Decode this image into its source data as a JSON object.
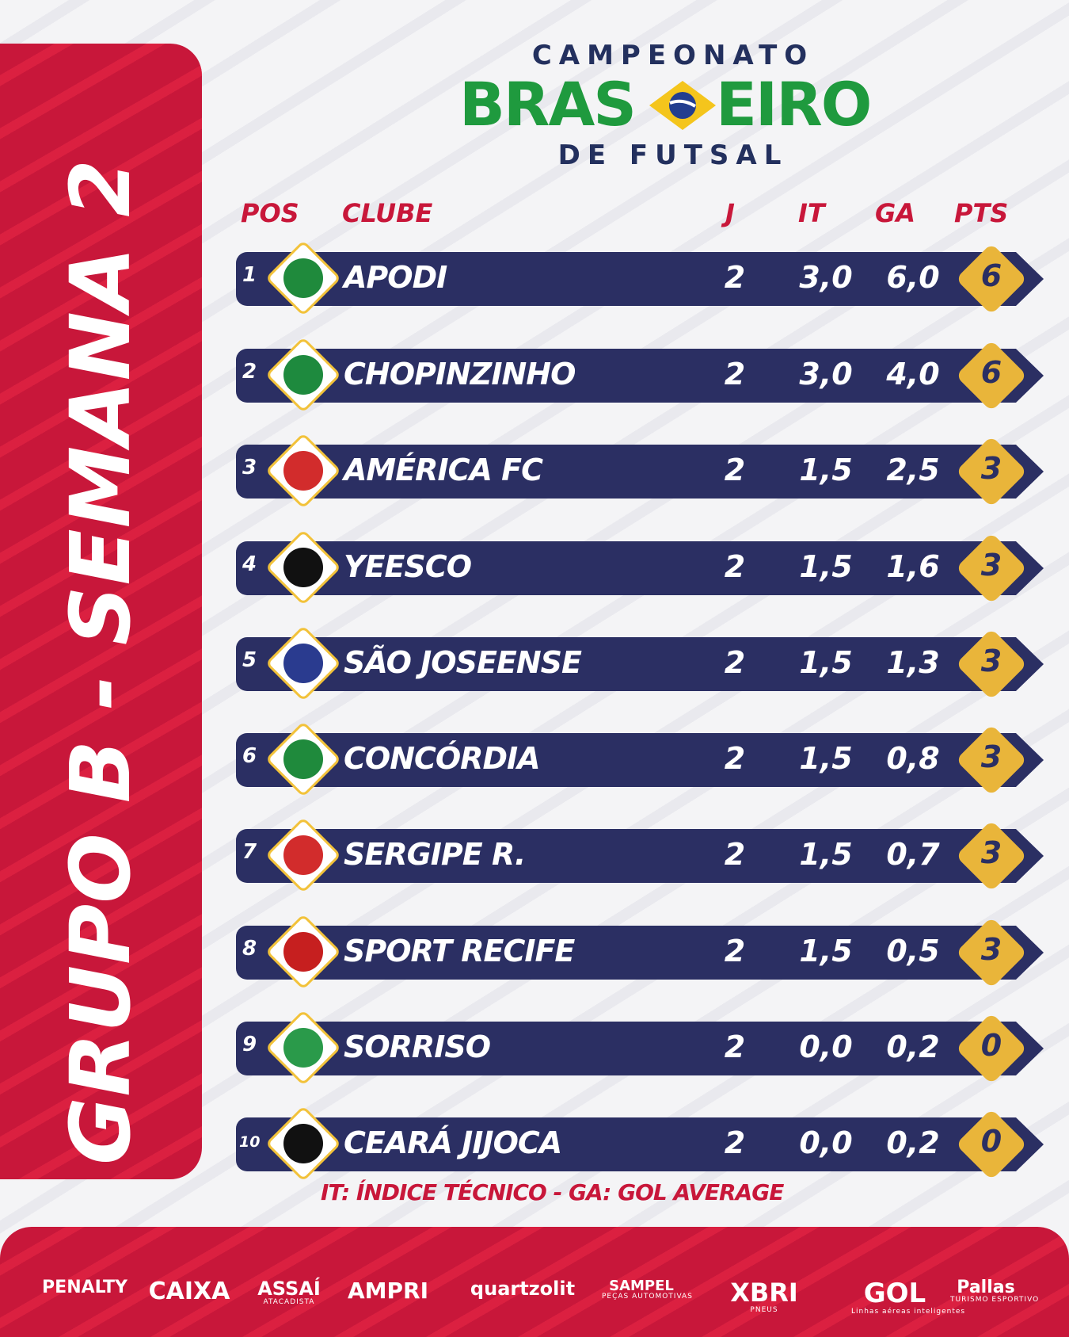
{
  "side_title": "GRUPO B - SEMANA 2",
  "logo": {
    "top": "CAMPEONATO",
    "middle_left": "BRAS",
    "middle_right": "EIRO",
    "bottom": "DE FUTSAL"
  },
  "headers": {
    "pos": "POS",
    "club": "CLUBE",
    "j": "J",
    "it": "IT",
    "ga": "GA",
    "pts": "PTS"
  },
  "rows": [
    {
      "pos": "1",
      "club": "APODI",
      "j": "2",
      "it": "3,0",
      "ga": "6,0",
      "pts": "6",
      "crest_color": "#1f8a3c"
    },
    {
      "pos": "2",
      "club": "CHOPINZINHO",
      "j": "2",
      "it": "3,0",
      "ga": "4,0",
      "pts": "6",
      "crest_color": "#1e8a3e"
    },
    {
      "pos": "3",
      "club": "AMÉRICA FC",
      "j": "2",
      "it": "1,5",
      "ga": "2,5",
      "pts": "3",
      "crest_color": "#d22c2c"
    },
    {
      "pos": "4",
      "club": "YEESCO",
      "j": "2",
      "it": "1,5",
      "ga": "1,6",
      "pts": "3",
      "crest_color": "#111111"
    },
    {
      "pos": "5",
      "club": "SÃO JOSEENSE",
      "j": "2",
      "it": "1,5",
      "ga": "1,3",
      "pts": "3",
      "crest_color": "#2a3b8f"
    },
    {
      "pos": "6",
      "club": "CONCÓRDIA",
      "j": "2",
      "it": "1,5",
      "ga": "0,8",
      "pts": "3",
      "crest_color": "#1f8a3c"
    },
    {
      "pos": "7",
      "club": "SERGIPE R.",
      "j": "2",
      "it": "1,5",
      "ga": "0,7",
      "pts": "3",
      "crest_color": "#d22c2c"
    },
    {
      "pos": "8",
      "club": "SPORT RECIFE",
      "j": "2",
      "it": "1,5",
      "ga": "0,5",
      "pts": "3",
      "crest_color": "#c61f1f"
    },
    {
      "pos": "9",
      "club": "SORRISO",
      "j": "2",
      "it": "0,0",
      "ga": "0,2",
      "pts": "0",
      "crest_color": "#2a9a4a"
    },
    {
      "pos": "10",
      "club": "CEARÁ JIJOCA",
      "j": "2",
      "it": "0,0",
      "ga": "0,2",
      "pts": "0",
      "crest_color": "#111111"
    }
  ],
  "legend": "IT: ÍNDICE TÉCNICO - GA: GOL AVERAGE",
  "sponsors": [
    {
      "name": "PENALTY",
      "sub": ""
    },
    {
      "name": "CAIXA",
      "sub": ""
    },
    {
      "name": "ASSAÍ",
      "sub": "ATACADISTA"
    },
    {
      "name": "AMPRI",
      "sub": ""
    },
    {
      "name": "quartzolit",
      "sub": ""
    },
    {
      "name": "SAMPEL",
      "sub": "PEÇAS AUTOMOTIVAS"
    },
    {
      "name": "XBRI",
      "sub": "PNEUS"
    },
    {
      "name": "GOL",
      "sub": "Linhas aéreas inteligentes"
    },
    {
      "name": "Pallas",
      "sub": "TURISMO ESPORTIVO"
    }
  ],
  "colors": {
    "red": "#c8173a",
    "navy": "#2b2f63",
    "gold": "#e9b53a",
    "green": "#1f9a3e"
  }
}
